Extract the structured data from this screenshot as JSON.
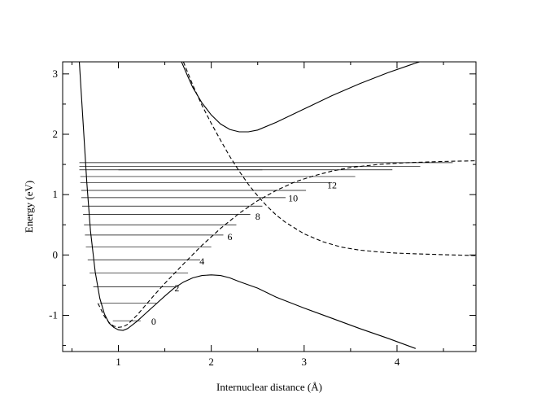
{
  "chart_data": {
    "type": "line",
    "title": "",
    "xlabel": "Internuclear distance (Å)",
    "ylabel": "Energy (eV)",
    "xlim": [
      0.4,
      4.85
    ],
    "ylim": [
      -1.6,
      3.2
    ],
    "x_ticks": [
      1,
      2,
      3,
      4
    ],
    "x_tick_labels": [
      "1",
      "2",
      "3",
      "4"
    ],
    "y_ticks": [
      -1,
      0,
      1,
      2,
      3
    ],
    "y_tick_labels": [
      "-1",
      "0",
      "1",
      "2",
      "3"
    ],
    "grid": false,
    "legend": "none",
    "series": [
      {
        "style": "solid",
        "x": [
          0.58,
          0.62,
          0.66,
          0.7,
          0.75,
          0.8,
          0.85,
          0.9,
          0.95,
          1.0,
          1.05,
          1.1,
          1.2,
          1.3,
          1.4,
          1.5,
          1.6,
          1.7,
          1.8,
          1.9,
          2.0,
          2.1,
          2.2,
          2.3,
          2.5,
          2.7,
          3.0,
          3.3,
          3.6,
          3.9,
          4.2
        ],
        "y": [
          3.2,
          2.2,
          1.2,
          0.4,
          -0.28,
          -0.72,
          -0.98,
          -1.13,
          -1.2,
          -1.24,
          -1.25,
          -1.22,
          -1.1,
          -0.96,
          -0.82,
          -0.68,
          -0.55,
          -0.45,
          -0.38,
          -0.34,
          -0.33,
          -0.34,
          -0.38,
          -0.44,
          -0.55,
          -0.7,
          -0.88,
          -1.05,
          -1.22,
          -1.38,
          -1.55
        ]
      },
      {
        "style": "solid",
        "x": [
          1.68,
          1.75,
          1.8,
          1.9,
          2.0,
          2.1,
          2.2,
          2.3,
          2.4,
          2.5,
          2.7,
          3.0,
          3.3,
          3.6,
          3.9,
          4.2,
          4.5,
          4.85
        ],
        "y": [
          3.2,
          2.95,
          2.78,
          2.52,
          2.32,
          2.17,
          2.08,
          2.04,
          2.04,
          2.07,
          2.2,
          2.42,
          2.64,
          2.84,
          3.02,
          3.18,
          3.32,
          3.48
        ]
      },
      {
        "style": "dashed",
        "x": [
          0.78,
          0.85,
          0.9,
          0.95,
          1.0,
          1.05,
          1.1,
          1.2,
          1.3,
          1.4,
          1.5,
          1.7,
          1.9,
          2.1,
          2.3,
          2.5,
          2.7,
          2.9,
          3.1,
          3.3,
          3.5,
          3.8,
          4.1,
          4.5,
          4.85
        ],
        "y": [
          -0.8,
          -1.02,
          -1.12,
          -1.18,
          -1.2,
          -1.19,
          -1.15,
          -1.0,
          -0.82,
          -0.64,
          -0.47,
          -0.15,
          0.16,
          0.44,
          0.69,
          0.9,
          1.07,
          1.21,
          1.31,
          1.39,
          1.45,
          1.5,
          1.53,
          1.55,
          1.56
        ]
      },
      {
        "style": "dashed",
        "x": [
          1.7,
          1.8,
          1.9,
          2.0,
          2.1,
          2.2,
          2.3,
          2.4,
          2.5,
          2.6,
          2.7,
          2.8,
          3.0,
          3.2,
          3.4,
          3.6,
          3.8,
          4.0,
          4.2,
          4.4,
          4.6,
          4.85
        ],
        "y": [
          3.2,
          2.82,
          2.48,
          2.18,
          1.9,
          1.63,
          1.39,
          1.17,
          0.98,
          0.81,
          0.66,
          0.54,
          0.35,
          0.22,
          0.13,
          0.08,
          0.05,
          0.03,
          0.02,
          0.01,
          0.0,
          -0.01
        ]
      }
    ],
    "vibrational_levels": [
      {
        "v": 0,
        "E": -1.09,
        "x_min": 0.94,
        "x_max": 1.24
      },
      {
        "v": 1,
        "E": -0.8,
        "x_min": 0.8,
        "x_max": 1.42
      },
      {
        "v": 2,
        "E": -0.53,
        "x_min": 0.73,
        "x_max": 1.62
      },
      {
        "v": 3,
        "E": -0.3,
        "x_min": 0.69,
        "x_max": 1.75
      },
      {
        "v": 4,
        "E": -0.08,
        "x_min": 0.67,
        "x_max": 1.88
      },
      {
        "v": 5,
        "E": 0.13,
        "x_min": 0.65,
        "x_max": 2.0
      },
      {
        "v": 6,
        "E": 0.33,
        "x_min": 0.64,
        "x_max": 2.13
      },
      {
        "v": 7,
        "E": 0.5,
        "x_min": 0.63,
        "x_max": 2.27
      },
      {
        "v": 8,
        "E": 0.67,
        "x_min": 0.62,
        "x_max": 2.42
      },
      {
        "v": 9,
        "E": 0.81,
        "x_min": 0.61,
        "x_max": 2.55
      },
      {
        "v": 10,
        "E": 0.95,
        "x_min": 0.6,
        "x_max": 2.8
      },
      {
        "v": 11,
        "E": 1.07,
        "x_min": 0.6,
        "x_max": 3.02
      },
      {
        "v": 12,
        "E": 1.2,
        "x_min": 0.59,
        "x_max": 3.3
      },
      {
        "v": 13,
        "E": 1.3,
        "x_min": 0.59,
        "x_max": 3.55
      },
      {
        "v": 14,
        "E": 1.41,
        "x_min": 1.0,
        "x_max": 2.55
      },
      {
        "v": 15,
        "E": 1.41,
        "x_min": 0.58,
        "x_max": 3.95
      },
      {
        "v": 16,
        "E": 1.47,
        "x_min": 0.58,
        "x_max": 4.25
      },
      {
        "v": 17,
        "E": 1.53,
        "x_min": 0.58,
        "x_max": 4.6
      }
    ],
    "level_labels": [
      {
        "text": "0",
        "x": 1.38,
        "y": -1.1
      },
      {
        "text": "2",
        "x": 1.63,
        "y": -0.55
      },
      {
        "text": "4",
        "x": 1.9,
        "y": -0.1
      },
      {
        "text": "6",
        "x": 2.2,
        "y": 0.3
      },
      {
        "text": "8",
        "x": 2.5,
        "y": 0.64
      },
      {
        "text": "10",
        "x": 2.88,
        "y": 0.94
      },
      {
        "text": "12",
        "x": 3.3,
        "y": 1.16
      }
    ]
  }
}
